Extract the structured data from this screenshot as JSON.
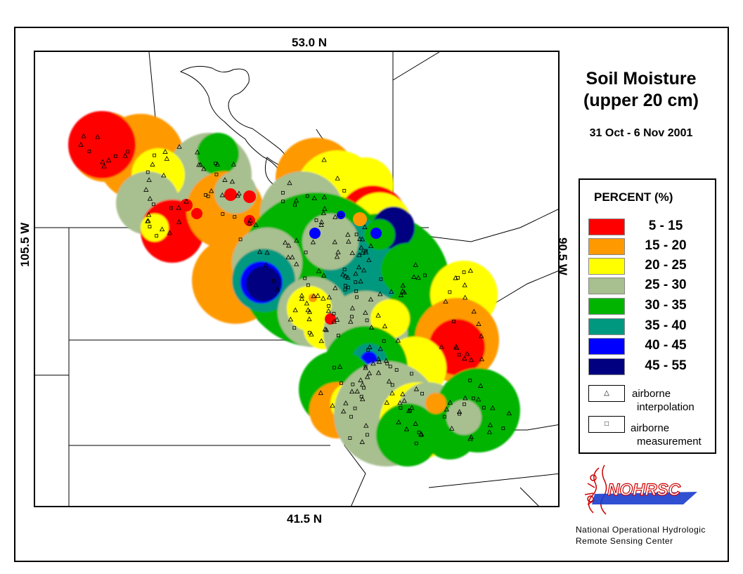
{
  "axes": {
    "top": "53.0 N",
    "bottom": "41.5 N",
    "left": "105.5 W",
    "right": "90.5 W"
  },
  "title": {
    "line1": "Soil Moisture",
    "line2": "(upper 20 cm)"
  },
  "date_range": "31 Oct - 6 Nov 2001",
  "legend": {
    "title": "PERCENT (%)",
    "classes": [
      {
        "range": "5 - 15",
        "color": "#ff0000"
      },
      {
        "range": "15 - 20",
        "color": "#ff9900"
      },
      {
        "range": "20 - 25",
        "color": "#ffff00"
      },
      {
        "range": "25 - 30",
        "color": "#a8bf8f"
      },
      {
        "range": "30 - 35",
        "color": "#00b400"
      },
      {
        "range": "35 - 40",
        "color": "#009980"
      },
      {
        "range": "40 - 45",
        "color": "#0000ff"
      },
      {
        "range": "45 - 55",
        "color": "#000080"
      }
    ],
    "symbols": [
      {
        "glyph": "△",
        "line1": "airborne",
        "line2": "interpolation"
      },
      {
        "glyph": "□",
        "line1": "airborne",
        "line2": "measurement"
      }
    ]
  },
  "logo": {
    "text": "NOHRSC"
  },
  "organization": {
    "line1": "National Operational Hydrologic",
    "line2": "Remote Sensing Center"
  }
}
